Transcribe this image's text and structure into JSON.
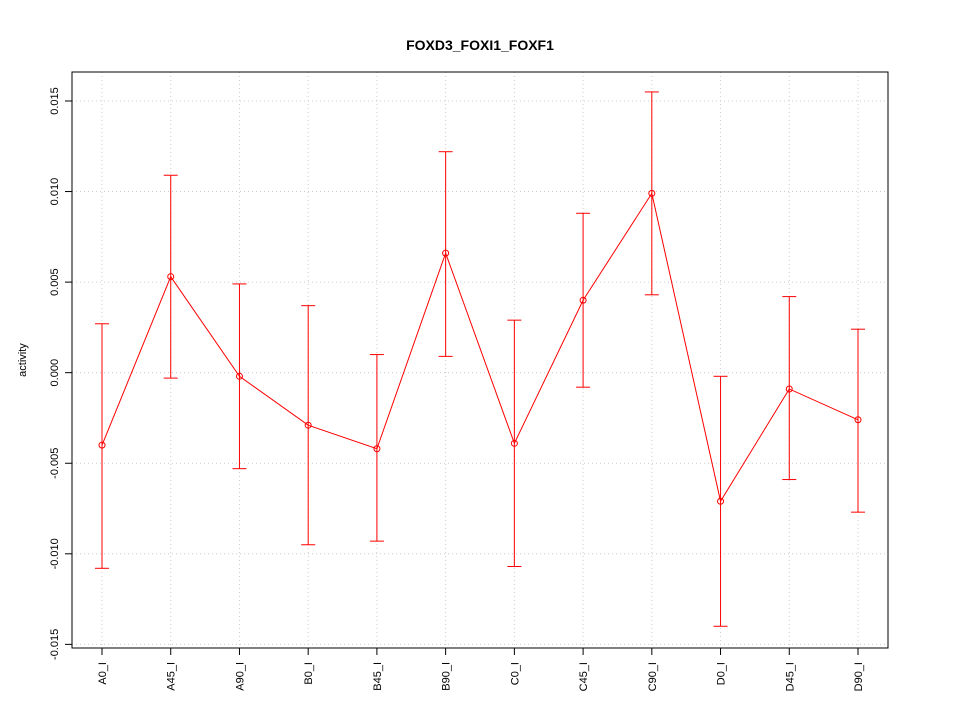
{
  "chart_data": {
    "type": "line",
    "title": "FOXD3_FOXI1_FOXF1",
    "xlabel": "",
    "ylabel": "activity",
    "categories": [
      "A0_I",
      "A45_I",
      "A90_I",
      "B0_I",
      "B45_I",
      "B90_I",
      "C0_I",
      "C45_I",
      "C90_I",
      "D0_I",
      "D45_I",
      "D90_I"
    ],
    "series": [
      {
        "values": [
          -0.004,
          0.0053,
          -0.0002,
          -0.0029,
          -0.0042,
          0.0066,
          -0.0039,
          0.004,
          0.0099,
          -0.0071,
          -0.0009,
          -0.0026
        ],
        "lower": [
          -0.0108,
          -0.0003,
          -0.0053,
          -0.0095,
          -0.0093,
          0.0009,
          -0.0107,
          -0.0008,
          0.0043,
          -0.014,
          -0.0059,
          -0.0077
        ],
        "upper": [
          0.0027,
          0.0109,
          0.0049,
          0.0037,
          0.001,
          0.0122,
          0.0029,
          0.0088,
          0.0155,
          -0.0002,
          0.0042,
          0.0024
        ],
        "color": "#ff0000"
      }
    ],
    "ylim": [
      -0.0152,
      0.0166
    ],
    "yticks": [
      -0.015,
      -0.01,
      -0.005,
      0.0,
      0.005,
      0.01,
      0.015
    ],
    "ytick_labels": [
      "-0.015",
      "-0.010",
      "-0.005",
      "0.000",
      "0.005",
      "0.010",
      "0.015"
    ],
    "grid": true,
    "grid_color": "#cccccc",
    "axis_color": "#000000"
  }
}
